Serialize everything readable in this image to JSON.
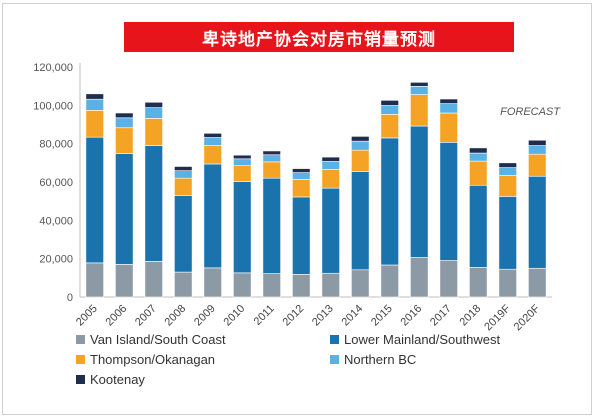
{
  "chart_data": {
    "type": "bar",
    "stacked": true,
    "title": "卑诗地产协会对房市销量预测",
    "annotation": "FORECAST",
    "categories": [
      "2005",
      "2006",
      "2007",
      "2008",
      "2009",
      "2010",
      "2011",
      "2012",
      "2013",
      "2014",
      "2015",
      "2016",
      "2017",
      "2018",
      "2019F",
      "2020F"
    ],
    "ylim": [
      0,
      120000
    ],
    "yticks": [
      0,
      20000,
      40000,
      60000,
      80000,
      100000,
      120000
    ],
    "ytick_labels": [
      "0",
      "20,000",
      "40,000",
      "60,000",
      "80,000",
      "100,000",
      "120,000"
    ],
    "grid": false,
    "legend_position": "bottom",
    "series": [
      {
        "name": "Van Island/South Coast",
        "color": "#8c9aa6",
        "values": [
          17800,
          17000,
          18600,
          13000,
          15200,
          12600,
          12200,
          11800,
          12400,
          14200,
          16700,
          20600,
          19000,
          15500,
          14500,
          15000
        ]
      },
      {
        "name": "Lower Mainland/Southwest",
        "color": "#1a73ad",
        "values": [
          65600,
          57800,
          60400,
          40000,
          54200,
          47600,
          49800,
          40400,
          44400,
          51300,
          66300,
          68600,
          61700,
          42800,
          38000,
          48000
        ]
      },
      {
        "name": "Thompson/Okanagan",
        "color": "#f4a324",
        "values": [
          14000,
          13500,
          14200,
          9000,
          9600,
          8300,
          8500,
          9100,
          9700,
          11100,
          12300,
          16400,
          15300,
          12600,
          11000,
          11500
        ]
      },
      {
        "name": "Northern BC",
        "color": "#5ab1e6",
        "values": [
          5800,
          5200,
          5600,
          3900,
          4200,
          3600,
          3700,
          3600,
          4200,
          4700,
          4600,
          4300,
          4900,
          4200,
          4000,
          4500
        ]
      },
      {
        "name": "Kootenay",
        "color": "#1f2d4e",
        "values": [
          2800,
          2500,
          2800,
          2200,
          2200,
          1900,
          2000,
          2100,
          2300,
          2500,
          2700,
          2100,
          2400,
          2700,
          2500,
          2800
        ]
      }
    ]
  }
}
